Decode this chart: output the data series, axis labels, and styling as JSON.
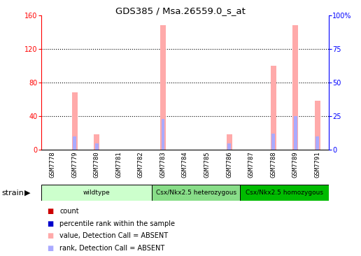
{
  "title": "GDS385 / Msa.26559.0_s_at",
  "samples": [
    "GSM7778",
    "GSM7779",
    "GSM7780",
    "GSM7781",
    "GSM7782",
    "GSM7783",
    "GSM7784",
    "GSM7785",
    "GSM7786",
    "GSM7787",
    "GSM7788",
    "GSM7789",
    "GSM7791"
  ],
  "value_absent": [
    0,
    68,
    18,
    0,
    0,
    148,
    0,
    0,
    18,
    0,
    100,
    148,
    58
  ],
  "rank_absent_pct": [
    0,
    10,
    5,
    0,
    0,
    23,
    0,
    0,
    5,
    0,
    12,
    25,
    10
  ],
  "count": [
    0,
    0,
    0,
    0,
    0,
    0,
    0,
    0,
    0,
    0,
    0,
    0,
    0
  ],
  "percentile_rank": [
    0,
    0,
    0,
    0,
    0,
    0,
    0,
    0,
    0,
    0,
    0,
    0,
    0
  ],
  "ylim_left": [
    0,
    160
  ],
  "ylim_right": [
    0,
    100
  ],
  "yticks_left": [
    0,
    40,
    80,
    120,
    160
  ],
  "yticks_right": [
    0,
    25,
    50,
    75,
    100
  ],
  "ytick_labels_right": [
    "0",
    "25",
    "50",
    "75",
    "100%"
  ],
  "groups": [
    {
      "label": "wildtype",
      "start": 0,
      "end": 5,
      "color": "#ccffcc"
    },
    {
      "label": "Csx/Nkx2.5 heterozygous",
      "start": 5,
      "end": 9,
      "color": "#88dd88"
    },
    {
      "label": "Csx/Nkx2.5 homozygous",
      "start": 9,
      "end": 13,
      "color": "#00bb00"
    }
  ],
  "value_absent_color": "#ffaaaa",
  "rank_absent_color": "#aaaaff",
  "count_color": "#cc0000",
  "percentile_color": "#0000cc",
  "bg_xaxis": "#c0c0c0",
  "legend_items": [
    {
      "label": "count",
      "color": "#cc0000"
    },
    {
      "label": "percentile rank within the sample",
      "color": "#0000cc"
    },
    {
      "label": "value, Detection Call = ABSENT",
      "color": "#ffaaaa"
    },
    {
      "label": "rank, Detection Call = ABSENT",
      "color": "#aaaaff"
    }
  ]
}
